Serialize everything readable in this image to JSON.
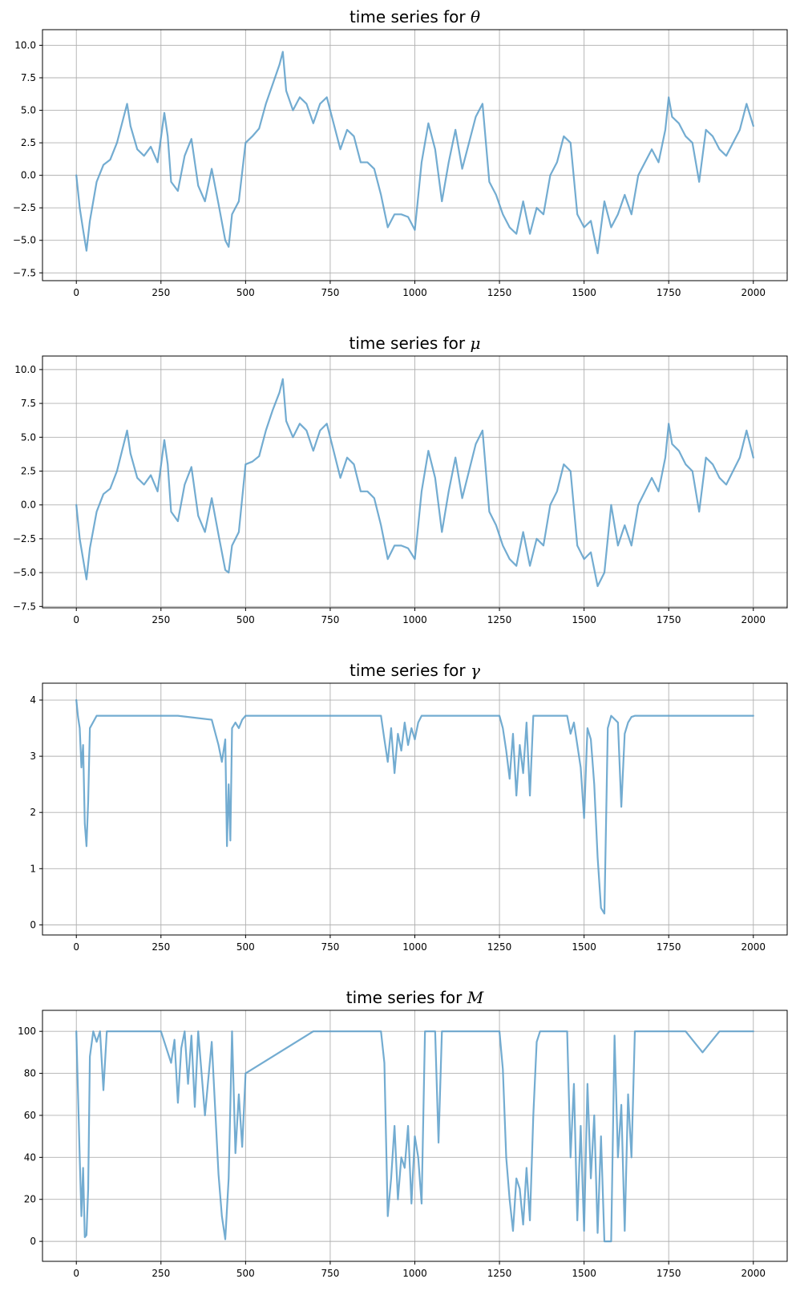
{
  "colors": {
    "line": "#5b9ec9",
    "grid": "#b0b0b0",
    "axis": "#000000"
  },
  "chart_data": [
    {
      "type": "line",
      "title": "time series for ",
      "symbol": "θ",
      "xlim": [
        -100,
        2100
      ],
      "ylim": [
        -8.1,
        11.2
      ],
      "xticks": [
        0,
        250,
        500,
        750,
        1000,
        1250,
        1500,
        1750,
        2000
      ],
      "yticks": [
        -7.5,
        -5.0,
        -2.5,
        0.0,
        2.5,
        5.0,
        7.5,
        10.0
      ],
      "ytick_labels": [
        "−7.5",
        "−5.0",
        "−2.5",
        "0.0",
        "2.5",
        "5.0",
        "7.5",
        "10.0"
      ],
      "x": [
        0,
        10,
        20,
        30,
        40,
        60,
        80,
        100,
        120,
        140,
        150,
        160,
        180,
        200,
        220,
        240,
        260,
        270,
        280,
        300,
        320,
        340,
        360,
        380,
        400,
        420,
        440,
        450,
        460,
        480,
        500,
        520,
        540,
        560,
        580,
        600,
        610,
        620,
        640,
        660,
        680,
        700,
        720,
        740,
        760,
        780,
        800,
        820,
        840,
        860,
        880,
        900,
        920,
        940,
        960,
        980,
        1000,
        1020,
        1040,
        1060,
        1080,
        1100,
        1120,
        1140,
        1160,
        1180,
        1200,
        1220,
        1240,
        1260,
        1280,
        1300,
        1320,
        1340,
        1360,
        1380,
        1400,
        1420,
        1440,
        1460,
        1480,
        1500,
        1520,
        1540,
        1560,
        1580,
        1600,
        1620,
        1640,
        1660,
        1680,
        1700,
        1720,
        1740,
        1750,
        1760,
        1780,
        1800,
        1820,
        1840,
        1860,
        1880,
        1900,
        1920,
        1940,
        1960,
        1980,
        2000
      ],
      "y": [
        0,
        -2.5,
        -4.2,
        -5.8,
        -3.5,
        -0.5,
        0.8,
        1.2,
        2.5,
        4.5,
        5.5,
        3.8,
        2.0,
        1.5,
        2.2,
        1.0,
        4.8,
        3.0,
        -0.5,
        -1.2,
        1.5,
        2.8,
        -0.8,
        -2.0,
        0.5,
        -2.2,
        -5.0,
        -5.5,
        -3.0,
        -2.0,
        2.5,
        3.0,
        3.6,
        5.5,
        7.0,
        8.5,
        9.5,
        6.5,
        5.0,
        6.0,
        5.5,
        4.0,
        5.5,
        6.0,
        4.0,
        2.0,
        3.5,
        3.0,
        1.0,
        1.0,
        0.5,
        -1.5,
        -4.0,
        -3.0,
        -3.0,
        -3.2,
        -4.2,
        1.0,
        4.0,
        2.0,
        -2.0,
        1.0,
        3.5,
        0.5,
        2.5,
        4.5,
        5.5,
        -0.5,
        -1.5,
        -3.0,
        -4.0,
        -4.5,
        -2.0,
        -4.5,
        -2.5,
        -3.0,
        0.0,
        1.0,
        3.0,
        2.5,
        -3.0,
        -4.0,
        -3.5,
        -6.0,
        -2.0,
        -4.0,
        -3.0,
        -1.5,
        -3.0,
        0.0,
        1.0,
        2.0,
        1.0,
        3.5,
        6.0,
        4.5,
        4.0,
        3.0,
        2.5,
        -0.5,
        3.5,
        3.0,
        2.0,
        1.5,
        2.5,
        3.5,
        5.5,
        3.8
      ]
    },
    {
      "type": "line",
      "title": "time series for ",
      "symbol": "μ",
      "xlim": [
        -100,
        2100
      ],
      "ylim": [
        -7.6,
        11.0
      ],
      "xticks": [
        0,
        250,
        500,
        750,
        1000,
        1250,
        1500,
        1750,
        2000
      ],
      "yticks": [
        -7.5,
        -5.0,
        -2.5,
        0.0,
        2.5,
        5.0,
        7.5,
        10.0
      ],
      "ytick_labels": [
        "−7.5",
        "−5.0",
        "−2.5",
        "0.0",
        "2.5",
        "5.0",
        "7.5",
        "10.0"
      ],
      "x": [
        0,
        10,
        20,
        30,
        40,
        60,
        80,
        100,
        120,
        140,
        150,
        160,
        180,
        200,
        220,
        240,
        260,
        270,
        280,
        300,
        320,
        340,
        360,
        380,
        400,
        420,
        440,
        450,
        460,
        480,
        500,
        520,
        540,
        560,
        580,
        600,
        610,
        620,
        640,
        660,
        680,
        700,
        720,
        740,
        760,
        780,
        800,
        820,
        840,
        860,
        880,
        900,
        920,
        940,
        960,
        980,
        1000,
        1020,
        1040,
        1060,
        1080,
        1100,
        1120,
        1140,
        1160,
        1180,
        1200,
        1220,
        1240,
        1260,
        1280,
        1300,
        1320,
        1340,
        1360,
        1380,
        1400,
        1420,
        1440,
        1460,
        1480,
        1500,
        1520,
        1540,
        1560,
        1580,
        1600,
        1620,
        1640,
        1660,
        1680,
        1700,
        1720,
        1740,
        1750,
        1760,
        1780,
        1800,
        1820,
        1840,
        1860,
        1880,
        1900,
        1920,
        1940,
        1960,
        1980,
        2000
      ],
      "y": [
        0,
        -2.5,
        -4.0,
        -5.5,
        -3.2,
        -0.5,
        0.8,
        1.2,
        2.5,
        4.5,
        5.5,
        3.8,
        2.0,
        1.5,
        2.2,
        1.0,
        4.8,
        3.0,
        -0.5,
        -1.2,
        1.5,
        2.8,
        -0.8,
        -2.0,
        0.5,
        -2.2,
        -4.8,
        -5.0,
        -3.0,
        -2.0,
        3.0,
        3.2,
        3.6,
        5.5,
        7.0,
        8.3,
        9.3,
        6.2,
        5.0,
        6.0,
        5.5,
        4.0,
        5.5,
        6.0,
        4.0,
        2.0,
        3.5,
        3.0,
        1.0,
        1.0,
        0.5,
        -1.5,
        -4.0,
        -3.0,
        -3.0,
        -3.2,
        -4.0,
        1.0,
        4.0,
        2.0,
        -2.0,
        1.0,
        3.5,
        0.5,
        2.5,
        4.5,
        5.5,
        -0.5,
        -1.5,
        -3.0,
        -4.0,
        -4.5,
        -2.0,
        -4.5,
        -2.5,
        -3.0,
        0.0,
        1.0,
        3.0,
        2.5,
        -3.0,
        -4.0,
        -3.5,
        -6.0,
        -5.0,
        0.0,
        -3.0,
        -1.5,
        -3.0,
        0.0,
        1.0,
        2.0,
        1.0,
        3.5,
        6.0,
        4.5,
        4.0,
        3.0,
        2.5,
        -0.5,
        3.5,
        3.0,
        2.0,
        1.5,
        2.5,
        3.5,
        5.5,
        3.5
      ]
    },
    {
      "type": "line",
      "title": "time series for ",
      "symbol": "γ",
      "xlim": [
        -100,
        2100
      ],
      "ylim": [
        -0.18,
        4.3
      ],
      "xticks": [
        0,
        250,
        500,
        750,
        1000,
        1250,
        1500,
        1750,
        2000
      ],
      "yticks": [
        0,
        1,
        2,
        3,
        4
      ],
      "ytick_labels": [
        "0",
        "1",
        "2",
        "3",
        "4"
      ],
      "x": [
        0,
        5,
        10,
        15,
        20,
        25,
        30,
        35,
        40,
        60,
        100,
        200,
        300,
        400,
        420,
        430,
        440,
        445,
        450,
        455,
        460,
        470,
        480,
        490,
        500,
        700,
        900,
        910,
        920,
        930,
        940,
        950,
        960,
        970,
        980,
        990,
        1000,
        1010,
        1020,
        1100,
        1200,
        1250,
        1260,
        1270,
        1280,
        1290,
        1300,
        1310,
        1320,
        1330,
        1340,
        1350,
        1360,
        1400,
        1450,
        1460,
        1470,
        1480,
        1490,
        1500,
        1510,
        1520,
        1530,
        1540,
        1550,
        1560,
        1570,
        1580,
        1600,
        1610,
        1620,
        1630,
        1640,
        1650,
        1700,
        1800,
        1900,
        2000
      ],
      "y": [
        4.0,
        3.7,
        3.5,
        2.8,
        3.2,
        1.8,
        1.4,
        2.2,
        3.5,
        3.72,
        3.72,
        3.72,
        3.72,
        3.65,
        3.2,
        2.9,
        3.3,
        1.4,
        2.5,
        1.5,
        3.5,
        3.6,
        3.5,
        3.65,
        3.72,
        3.72,
        3.72,
        3.3,
        2.9,
        3.5,
        2.7,
        3.4,
        3.1,
        3.6,
        3.2,
        3.5,
        3.3,
        3.6,
        3.72,
        3.72,
        3.72,
        3.72,
        3.5,
        3.1,
        2.6,
        3.4,
        2.3,
        3.2,
        2.7,
        3.6,
        2.3,
        3.72,
        3.72,
        3.72,
        3.72,
        3.4,
        3.6,
        3.2,
        2.8,
        1.9,
        3.5,
        3.3,
        2.5,
        1.2,
        0.3,
        0.2,
        3.5,
        3.72,
        3.6,
        2.1,
        3.4,
        3.6,
        3.7,
        3.72,
        3.72,
        3.72,
        3.72,
        3.72
      ]
    },
    {
      "type": "line",
      "title": "time series for ",
      "symbol": "M",
      "xlim": [
        -100,
        2100
      ],
      "ylim": [
        -9.5,
        110
      ],
      "xticks": [
        0,
        250,
        500,
        750,
        1000,
        1250,
        1500,
        1750,
        2000
      ],
      "yticks": [
        0,
        20,
        40,
        60,
        80,
        100
      ],
      "ytick_labels": [
        "0",
        "20",
        "40",
        "60",
        "80",
        "100"
      ],
      "x": [
        0,
        5,
        10,
        15,
        20,
        25,
        30,
        35,
        40,
        50,
        60,
        70,
        80,
        90,
        100,
        150,
        200,
        250,
        280,
        290,
        300,
        310,
        320,
        330,
        340,
        350,
        360,
        380,
        400,
        420,
        430,
        440,
        450,
        460,
        470,
        480,
        490,
        500,
        700,
        900,
        910,
        920,
        930,
        940,
        950,
        960,
        970,
        980,
        990,
        1000,
        1010,
        1020,
        1030,
        1040,
        1060,
        1070,
        1080,
        1100,
        1200,
        1250,
        1260,
        1270,
        1280,
        1290,
        1300,
        1310,
        1320,
        1330,
        1340,
        1350,
        1360,
        1370,
        1380,
        1400,
        1430,
        1450,
        1460,
        1470,
        1480,
        1490,
        1500,
        1510,
        1520,
        1530,
        1540,
        1550,
        1560,
        1570,
        1580,
        1590,
        1600,
        1610,
        1620,
        1630,
        1640,
        1650,
        1700,
        1750,
        1800,
        1850,
        1900,
        1950,
        2000
      ],
      "y": [
        100,
        70,
        40,
        12,
        35,
        2,
        3,
        25,
        88,
        100,
        95,
        100,
        72,
        100,
        100,
        100,
        100,
        100,
        85,
        96,
        66,
        92,
        100,
        75,
        98,
        64,
        100,
        60,
        95,
        32,
        12,
        1,
        30,
        100,
        42,
        70,
        45,
        80,
        100,
        100,
        85,
        12,
        30,
        55,
        20,
        40,
        35,
        55,
        18,
        50,
        40,
        18,
        100,
        100,
        100,
        47,
        100,
        100,
        100,
        100,
        82,
        40,
        20,
        5,
        30,
        25,
        8,
        35,
        10,
        60,
        95,
        100,
        100,
        100,
        100,
        100,
        40,
        75,
        10,
        55,
        5,
        75,
        30,
        60,
        4,
        50,
        0,
        0,
        0,
        98,
        40,
        65,
        5,
        70,
        40,
        100,
        100,
        100,
        100,
        90,
        100,
        100,
        100
      ]
    }
  ]
}
